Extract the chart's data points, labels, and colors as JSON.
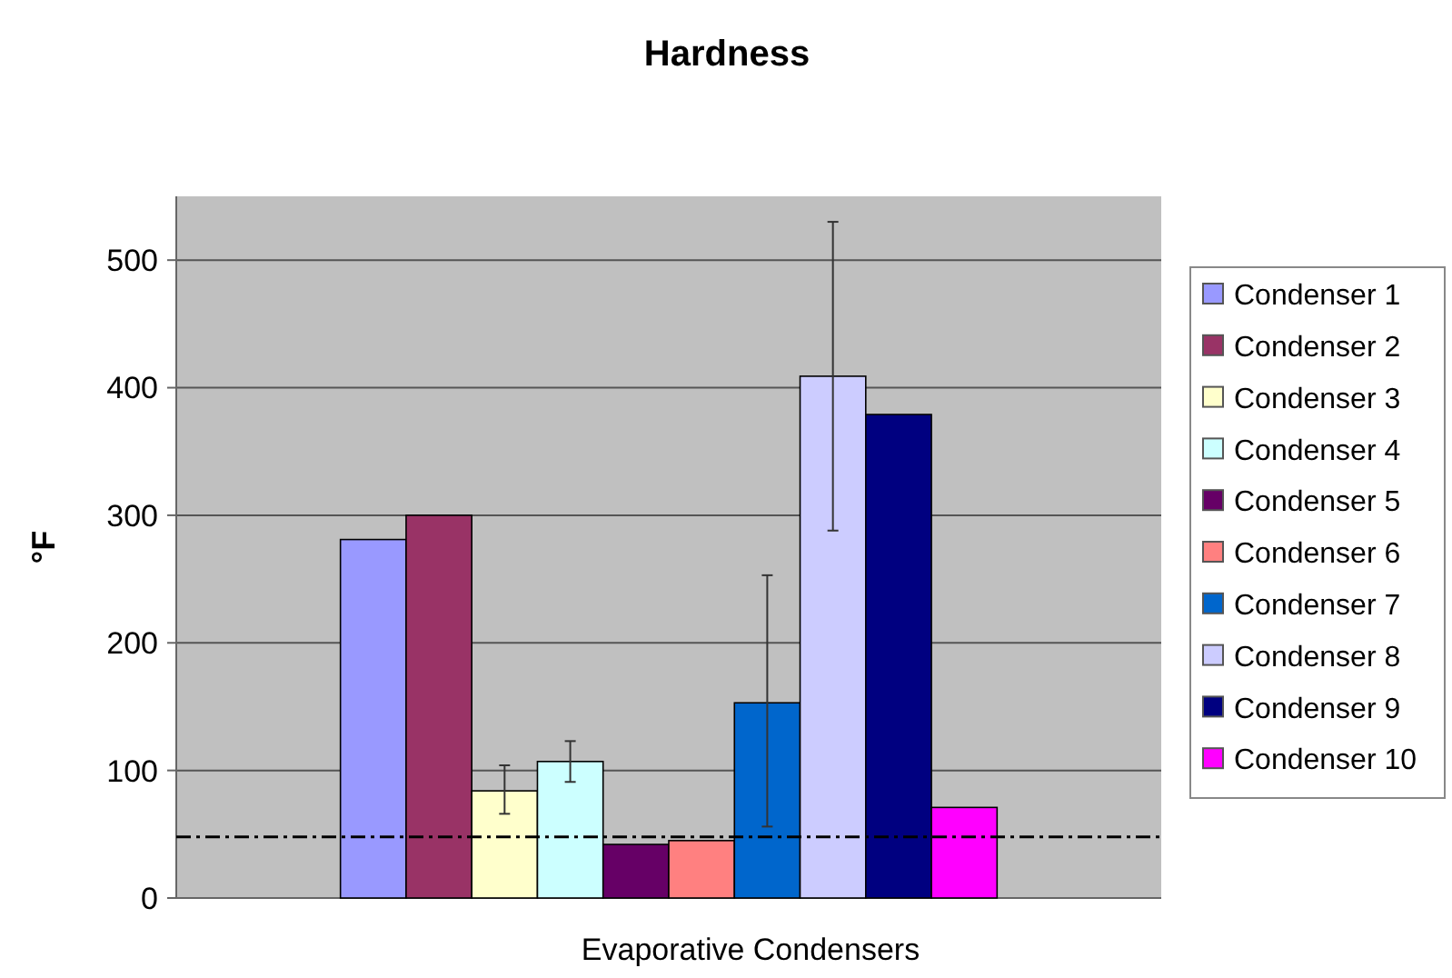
{
  "chart_data": {
    "type": "bar",
    "title": "Hardness",
    "xlabel": "Evaporative Condensers",
    "ylabel": "°F",
    "categories": [
      null
    ],
    "series": [
      {
        "name": "Condenser 1",
        "color": "#9999ff",
        "values": [
          281
        ]
      },
      {
        "name": "Condenser 2",
        "color": "#993366",
        "values": [
          300
        ]
      },
      {
        "name": "Condenser 3",
        "color": "#ffffcc",
        "values": [
          84
        ],
        "errors": [
          [
            66,
            104
          ]
        ]
      },
      {
        "name": "Condenser 4",
        "color": "#ccffff",
        "values": [
          107
        ],
        "errors": [
          [
            91,
            123
          ]
        ]
      },
      {
        "name": "Condenser 5",
        "color": "#660066",
        "values": [
          42
        ]
      },
      {
        "name": "Condenser 6",
        "color": "#ff8080",
        "values": [
          45
        ]
      },
      {
        "name": "Condenser 7",
        "color": "#0066cc",
        "values": [
          153
        ],
        "errors": [
          [
            56,
            253
          ]
        ]
      },
      {
        "name": "Condenser 8",
        "color": "#ccccff",
        "values": [
          409
        ],
        "errors": [
          [
            288,
            530
          ]
        ]
      },
      {
        "name": "Condenser 9",
        "color": "#000080",
        "values": [
          379
        ]
      },
      {
        "name": "Condenser 10",
        "color": "#ff00ff",
        "values": [
          71
        ]
      }
    ],
    "ylim": [
      0,
      550
    ],
    "yticks": [
      0,
      100,
      200,
      300,
      400,
      500
    ],
    "grid": "y",
    "legend": "right",
    "ref_lines": [
      {
        "axis": "y",
        "value": 48,
        "line_style": "dashed",
        "color": "#000000"
      }
    ]
  }
}
